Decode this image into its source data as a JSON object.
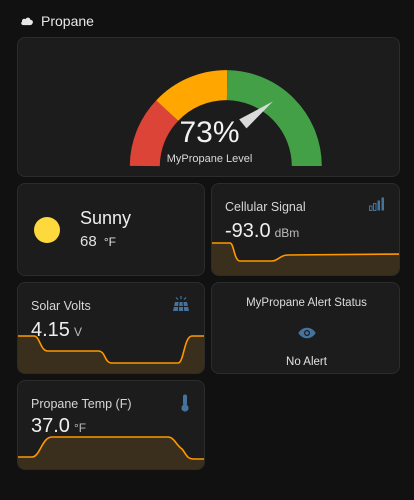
{
  "header": {
    "title": "Propane",
    "icon": "cloud-icon"
  },
  "gauge": {
    "value": 73,
    "value_text": "73%",
    "label": "MyPropane Level",
    "colors": {
      "red": "#db4437",
      "yellow": "#ffa600",
      "green": "#43a047",
      "needle": "#dadada"
    }
  },
  "weather": {
    "condition": "Sunny",
    "temperature": "68",
    "unit": "°F",
    "icon": "sun-icon",
    "sun_color": "#fdd93d"
  },
  "cellular": {
    "title": "Cellular Signal",
    "value": "-93.0",
    "unit": "dBm",
    "icon": "signal-bars-icon"
  },
  "solar": {
    "title": "Solar Volts",
    "value": "4.15",
    "unit": "V",
    "icon": "solar-panel-icon"
  },
  "alert": {
    "title": "MyPropane Alert Status",
    "status": "No Alert",
    "icon": "eye-icon"
  },
  "temp": {
    "title": "Propane Temp (F)",
    "value": "37.0",
    "unit": "°F",
    "icon": "thermometer-icon"
  },
  "colors": {
    "accent": "#44739e",
    "spark_line": "#ff9800",
    "spark_fill": "#3a2e1c"
  }
}
